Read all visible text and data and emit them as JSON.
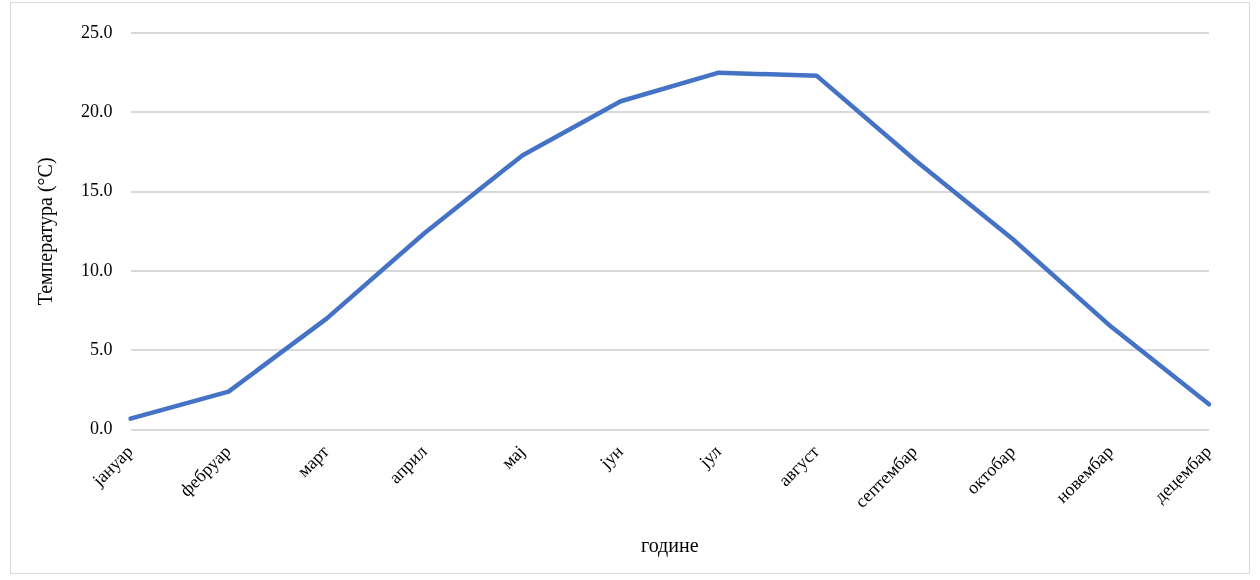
{
  "chart_data": {
    "type": "line",
    "xlabel": "године",
    "ylabel": "Температура (°C)",
    "categories": [
      "јануар",
      "фебруар",
      "март",
      "април",
      "мај",
      "јун",
      "јул",
      "август",
      "септембар",
      "октобар",
      "новембар",
      "децембар"
    ],
    "series": [
      {
        "color": "#4472c4",
        "values": [
          0.7,
          2.4,
          7.0,
          12.4,
          17.3,
          20.7,
          22.5,
          22.3,
          17.0,
          12.0,
          6.5,
          1.6
        ]
      }
    ],
    "ylim": [
      0,
      25
    ],
    "yticks": [
      {
        "value": 0,
        "label": "0.0"
      },
      {
        "value": 5,
        "label": "5.0"
      },
      {
        "value": 10,
        "label": "10.0"
      },
      {
        "value": 15,
        "label": "15.0"
      },
      {
        "value": 20,
        "label": "20.0"
      },
      {
        "value": 25,
        "label": "25.0"
      }
    ],
    "grid": "y",
    "legend": false,
    "marker": "none",
    "line_style": "solid"
  }
}
